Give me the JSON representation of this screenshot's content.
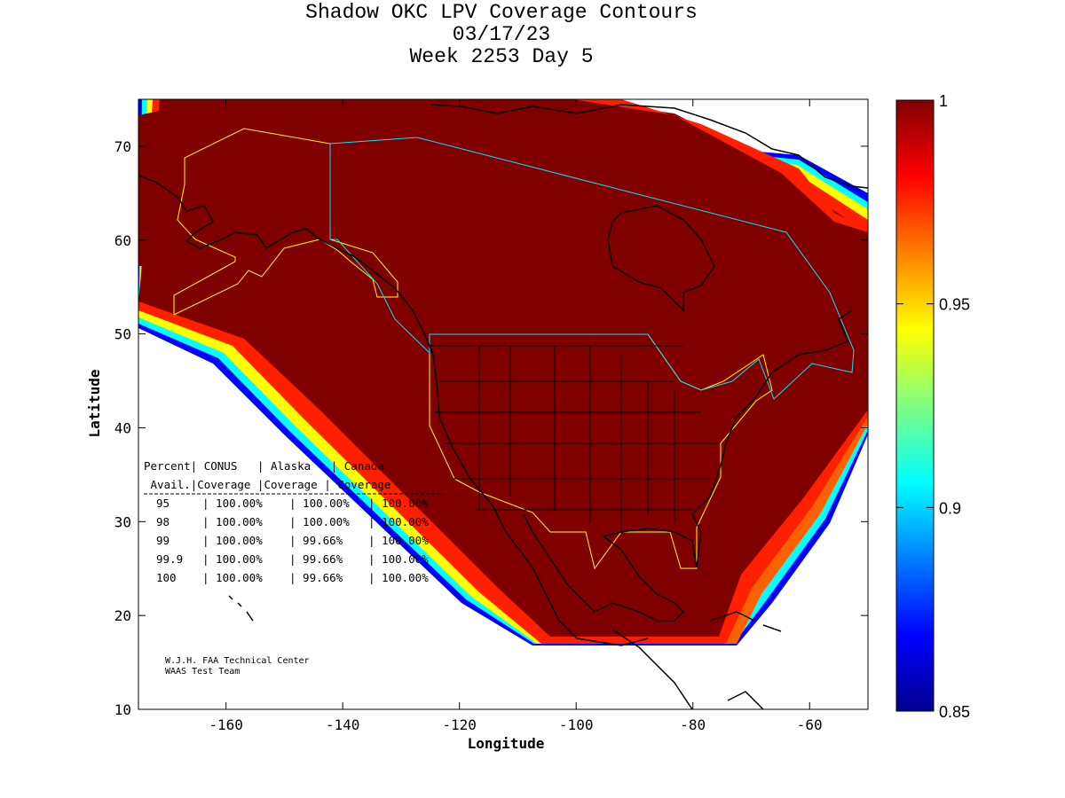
{
  "title": {
    "line1": "Shadow OKC LPV Coverage Contours",
    "line2": "03/17/23",
    "line3": "Week 2253 Day 5"
  },
  "axes": {
    "xlabel": "Longitude",
    "ylabel": "Latitude",
    "xticks": [
      -160,
      -140,
      -120,
      -100,
      -80,
      -60
    ],
    "yticks": [
      10,
      20,
      30,
      40,
      50,
      60,
      70
    ],
    "xlim": [
      -175,
      -50
    ],
    "ylim": [
      10,
      75
    ]
  },
  "colorbar": {
    "ticks": [
      "1",
      "0.95",
      "0.9",
      "0.85"
    ],
    "range": [
      0.85,
      1.0
    ],
    "colormap": "jet"
  },
  "coverage_table": {
    "header1": "Percent| CONUS   | Alaska   | Canada",
    "header2": " Avail.|Coverage |Coverage | Coverage",
    "rows": [
      {
        "avail": "95",
        "conus": "100.00%",
        "alaska": "100.00%",
        "canada": "100.00%"
      },
      {
        "avail": "98",
        "conus": "100.00%",
        "alaska": "100.00%",
        "canada": "100.00%"
      },
      {
        "avail": "99",
        "conus": "100.00%",
        "alaska": "99.66%",
        "canada": "100.00%"
      },
      {
        "avail": "99.9",
        "conus": "100.00%",
        "alaska": "99.66%",
        "canada": "100.00%"
      },
      {
        "avail": "100",
        "conus": "100.00%",
        "alaska": "99.66%",
        "canada": "100.00%"
      }
    ]
  },
  "credit": {
    "line1": "W.J.H. FAA Technical Center",
    "line2": "WAAS Test Team"
  },
  "colors": {
    "full_coverage": "#800000",
    "conus_boundary": "#ffff00",
    "canada_boundary": "#00e5ff",
    "coastline": "#000000"
  }
}
